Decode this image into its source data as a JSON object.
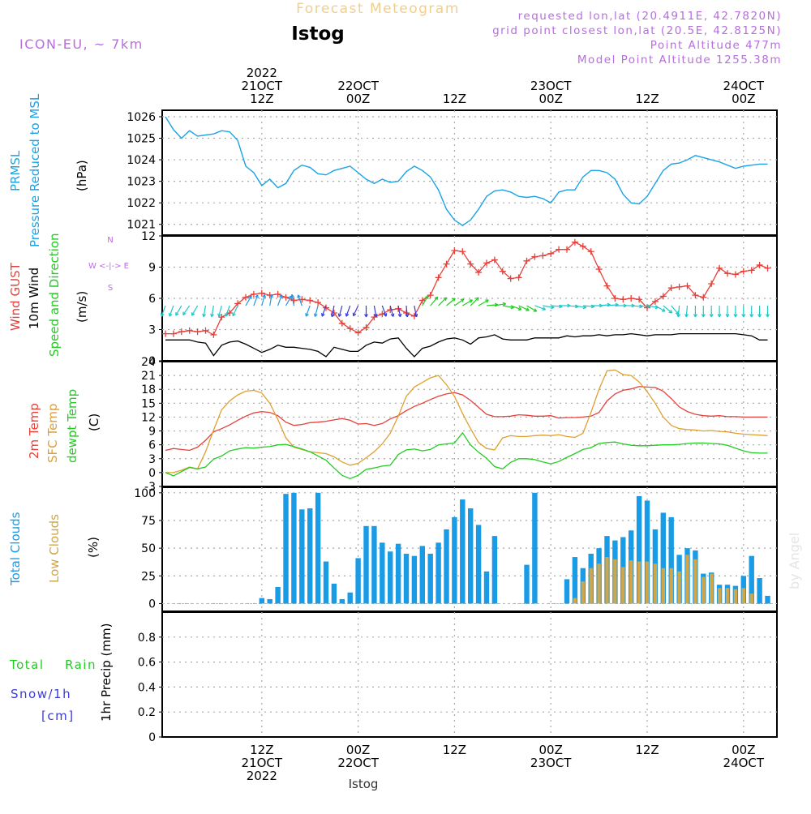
{
  "header": {
    "title": "Forecast Meteogram",
    "station": "Istog",
    "model": "ICON-EU, ~ 7km",
    "requested": "requested lon,lat (20.4911E, 42.7820N)",
    "grid_point": "grid point closest lon,lat (20.5E, 42.8125N)",
    "point_altitude": "Point Altitude 477m",
    "model_altitude": "Model Point Altitude 1255.38m",
    "footer_station": "Istog",
    "watermark": "by Angel"
  },
  "colors": {
    "pressure": "#19a3e6",
    "gust": "#e6403a",
    "wind": "#000000",
    "temp2m": "#e6403a",
    "sfc": "#e0a030",
    "dewpt": "#22cc22",
    "total_clouds": "#1a9be6",
    "low_clouds": "#cfa64a",
    "model_text": "#b86de0",
    "rain": "#22cc22",
    "snow": "#3b3bd9"
  },
  "time_axis": {
    "top_labels": [
      {
        "lines": [
          "2022",
          "21OCT",
          "12Z"
        ],
        "h": 12
      },
      {
        "lines": [
          "22OCT",
          "00Z"
        ],
        "h": 24
      },
      {
        "lines": [
          "12Z"
        ],
        "h": 36
      },
      {
        "lines": [
          "23OCT",
          "00Z"
        ],
        "h": 48
      },
      {
        "lines": [
          "12Z"
        ],
        "h": 60
      },
      {
        "lines": [
          "24OCT",
          "00Z"
        ],
        "h": 72
      }
    ],
    "bottom_labels": [
      {
        "lines": [
          "12Z",
          "21OCT",
          "2022"
        ],
        "h": 12
      },
      {
        "lines": [
          "00Z",
          "22OCT"
        ],
        "h": 24
      },
      {
        "lines": [
          "12Z"
        ],
        "h": 36
      },
      {
        "lines": [
          "00Z",
          "23OCT"
        ],
        "h": 48
      },
      {
        "lines": [
          "12Z"
        ],
        "h": 60
      },
      {
        "lines": [
          "00Z",
          "24OCT"
        ],
        "h": 72
      }
    ]
  },
  "panels": {
    "pressure": {
      "ylabel_1": "PRMSL",
      "ylabel_2": "Pressure Reduced to MSL",
      "unit": "(hPa)"
    },
    "wind": {
      "ylabel_gust": "Wind GUST",
      "ylabel_10m": "10m Wind",
      "ylabel_dir": "Speed and Direction",
      "unit": "(m/s)",
      "compass_h": "W <-|-> E",
      "compass_n": "N",
      "compass_s": "S"
    },
    "temp": {
      "ylabel_2m": "2m Temp",
      "ylabel_sfc": "SFC Temp",
      "ylabel_dew": "dewpt Temp",
      "unit": "(C)"
    },
    "clouds": {
      "ylabel_total": "Total Clouds",
      "ylabel_low": "Low Clouds",
      "unit": "(%)"
    },
    "precip": {
      "ylabel_total": "Total",
      "ylabel_rain": "Rain",
      "ylabel_snow": "Snow/1h",
      "ylabel_cm": "[cm]",
      "ylabel_1hr": "1hr Precip (mm)"
    }
  },
  "chart_data": [
    {
      "type": "line",
      "ylim": [
        1020.5,
        1026.3
      ],
      "yticks": [
        1021,
        1022,
        1023,
        1024,
        1025,
        1026
      ],
      "grid": true,
      "x_hours": [
        0,
        1,
        2,
        3,
        4,
        5,
        6,
        7,
        8,
        9,
        10,
        11,
        12,
        13,
        14,
        15,
        16,
        17,
        18,
        19,
        20,
        21,
        22,
        23,
        24,
        25,
        26,
        27,
        28,
        29,
        30,
        31,
        32,
        33,
        34,
        35,
        36,
        37,
        38,
        39,
        40,
        41,
        42,
        43,
        44,
        45,
        46,
        47,
        48,
        49,
        50,
        51,
        52,
        53,
        54,
        55,
        56,
        57,
        58,
        59,
        60,
        61,
        62,
        63,
        64,
        65,
        66,
        67,
        68,
        69,
        70,
        71,
        72,
        73,
        74,
        75
      ],
      "series": [
        {
          "key": "prmsl",
          "values": [
            1026.0,
            1025.4,
            1025.0,
            1025.35,
            1025.1,
            1025.15,
            1025.2,
            1025.35,
            1025.3,
            1024.9,
            1023.7,
            1023.4,
            1022.8,
            1023.1,
            1022.7,
            1022.9,
            1023.5,
            1023.75,
            1023.65,
            1023.35,
            1023.3,
            1023.5,
            1023.6,
            1023.7,
            1023.4,
            1023.1,
            1022.9,
            1023.1,
            1022.95,
            1023.0,
            1023.45,
            1023.7,
            1023.5,
            1023.2,
            1022.6,
            1021.7,
            1021.2,
            1020.95,
            1021.2,
            1021.7,
            1022.3,
            1022.55,
            1022.6,
            1022.5,
            1022.3,
            1022.25,
            1022.3,
            1022.2,
            1022.0,
            1022.5,
            1022.6,
            1022.6,
            1023.2,
            1023.5,
            1023.5,
            1023.4,
            1023.1,
            1022.4,
            1022.0,
            1021.95,
            1022.3,
            1022.9,
            1023.5,
            1023.8,
            1023.85,
            1024.0,
            1024.2,
            1024.1,
            1024.0,
            1023.9,
            1023.75,
            1023.6,
            1023.7,
            1023.75,
            1023.8,
            1023.8
          ]
        }
      ]
    },
    {
      "type": "line",
      "ylim": [
        0,
        12
      ],
      "yticks": [
        0,
        3,
        6,
        9,
        12
      ],
      "grid": true,
      "x_hours": [
        0,
        1,
        2,
        3,
        4,
        5,
        6,
        7,
        8,
        9,
        10,
        11,
        12,
        13,
        14,
        15,
        16,
        17,
        18,
        19,
        20,
        21,
        22,
        23,
        24,
        25,
        26,
        27,
        28,
        29,
        30,
        31,
        32,
        33,
        34,
        35,
        36,
        37,
        38,
        39,
        40,
        41,
        42,
        43,
        44,
        45,
        46,
        47,
        48,
        49,
        50,
        51,
        52,
        53,
        54,
        55,
        56,
        57,
        58,
        59,
        60,
        61,
        62,
        63,
        64,
        65,
        66,
        67,
        68,
        69,
        70,
        71,
        72,
        73,
        74,
        75
      ],
      "series": [
        {
          "key": "gust",
          "values": [
            2.6,
            2.6,
            2.8,
            2.9,
            2.8,
            2.9,
            2.5,
            4.2,
            4.6,
            5.5,
            6.1,
            6.4,
            6.5,
            6.3,
            6.4,
            6.1,
            5.8,
            5.9,
            5.8,
            5.6,
            5.1,
            4.6,
            3.6,
            3.1,
            2.7,
            3.2,
            4.2,
            4.5,
            4.9,
            5.0,
            4.6,
            4.3,
            5.8,
            6.3,
            8.0,
            9.3,
            10.6,
            10.5,
            9.3,
            8.5,
            9.4,
            9.7,
            8.6,
            7.9,
            8.0,
            9.6,
            10.0,
            10.1,
            10.3,
            10.7,
            10.7,
            11.4,
            11.0,
            10.5,
            8.8,
            7.2,
            6.0,
            5.9,
            6.0,
            5.9,
            5.1,
            5.7,
            6.2,
            7.0,
            7.1,
            7.2,
            6.3,
            6.1,
            7.4,
            8.9,
            8.4,
            8.3,
            8.6,
            8.7,
            9.2,
            8.9
          ]
        },
        {
          "key": "wind10m",
          "values": [
            2.0,
            2.0,
            2.0,
            2.0,
            1.8,
            1.7,
            0.5,
            1.5,
            1.8,
            1.9,
            1.6,
            1.2,
            0.8,
            1.1,
            1.5,
            1.3,
            1.3,
            1.2,
            1.1,
            0.9,
            0.4,
            1.3,
            1.1,
            0.9,
            0.9,
            1.5,
            1.8,
            1.7,
            2.1,
            2.2,
            1.2,
            0.4,
            1.2,
            1.4,
            1.8,
            2.1,
            2.2,
            2.0,
            1.6,
            2.2,
            2.3,
            2.5,
            2.1,
            2.0,
            2.0,
            2.0,
            2.2,
            2.2,
            2.2,
            2.2,
            2.4,
            2.3,
            2.4,
            2.4,
            2.5,
            2.4,
            2.5,
            2.5,
            2.6,
            2.5,
            2.4,
            2.5,
            2.5,
            2.5,
            2.6,
            2.6,
            2.6,
            2.6,
            2.6,
            2.6,
            2.6,
            2.6,
            2.5,
            2.4,
            2.0,
            2.0
          ]
        }
      ]
    },
    {
      "type": "line",
      "ylim": [
        -3,
        24
      ],
      "yticks": [
        -3,
        0,
        3,
        6,
        9,
        12,
        15,
        18,
        21,
        24
      ],
      "grid": true,
      "x_hours": [
        0,
        1,
        2,
        3,
        4,
        5,
        6,
        7,
        8,
        9,
        10,
        11,
        12,
        13,
        14,
        15,
        16,
        17,
        18,
        19,
        20,
        21,
        22,
        23,
        24,
        25,
        26,
        27,
        28,
        29,
        30,
        31,
        32,
        33,
        34,
        35,
        36,
        37,
        38,
        39,
        40,
        41,
        42,
        43,
        44,
        45,
        46,
        47,
        48,
        49,
        50,
        51,
        52,
        53,
        54,
        55,
        56,
        57,
        58,
        59,
        60,
        61,
        62,
        63,
        64,
        65,
        66,
        67,
        68,
        69,
        70,
        71,
        72,
        73,
        74,
        75
      ],
      "series": [
        {
          "key": "t2m",
          "values": [
            4.8,
            5.2,
            5.0,
            4.8,
            5.5,
            7.0,
            8.8,
            9.5,
            10.3,
            11.3,
            12.2,
            12.9,
            13.2,
            13.0,
            12.3,
            10.9,
            10.2,
            10.4,
            10.8,
            10.9,
            11.1,
            11.4,
            11.7,
            11.3,
            10.5,
            10.6,
            10.2,
            10.6,
            11.6,
            12.3,
            13.4,
            14.3,
            15.0,
            15.8,
            16.5,
            17.0,
            17.3,
            16.8,
            15.6,
            14.1,
            12.6,
            12.1,
            12.1,
            12.2,
            12.5,
            12.4,
            12.2,
            12.2,
            12.3,
            11.8,
            11.9,
            11.9,
            12.0,
            12.2,
            13.0,
            15.5,
            17.0,
            17.8,
            18.1,
            18.6,
            18.5,
            18.4,
            17.6,
            16.0,
            14.2,
            13.2,
            12.6,
            12.3,
            12.2,
            12.3,
            12.1,
            12.1,
            12.0,
            12.0,
            12.0,
            12.0
          ]
        },
        {
          "key": "sfc",
          "values": [
            0.0,
            0.0,
            0.5,
            1.2,
            0.8,
            4.5,
            9.2,
            13.6,
            15.5,
            16.8,
            17.6,
            17.8,
            17.2,
            15.0,
            11.5,
            7.5,
            5.5,
            5.0,
            4.5,
            4.3,
            4.1,
            3.4,
            2.3,
            1.6,
            2.0,
            3.2,
            4.5,
            6.2,
            8.5,
            12.2,
            16.5,
            18.5,
            19.5,
            20.5,
            21.0,
            19.0,
            16.5,
            12.8,
            9.5,
            6.5,
            5.2,
            4.9,
            7.5,
            8.0,
            7.8,
            7.8,
            8.0,
            8.1,
            8.0,
            8.2,
            7.8,
            7.6,
            8.5,
            13.0,
            18.0,
            22.0,
            22.2,
            21.2,
            21.0,
            19.6,
            17.5,
            15.0,
            12.0,
            10.2,
            9.5,
            9.3,
            9.2,
            9.0,
            9.1,
            8.9,
            8.8,
            8.5,
            8.3,
            8.2,
            8.1,
            8.0
          ]
        },
        {
          "key": "dewpt",
          "values": [
            0.0,
            -0.7,
            0.2,
            1.1,
            0.8,
            1.2,
            2.9,
            3.6,
            4.7,
            5.1,
            5.4,
            5.3,
            5.5,
            5.6,
            6.0,
            6.1,
            5.6,
            5.1,
            4.5,
            3.6,
            2.7,
            1.0,
            -0.6,
            -1.3,
            -0.6,
            0.7,
            1.0,
            1.4,
            1.6,
            3.9,
            4.9,
            5.1,
            4.7,
            5.0,
            6.0,
            6.2,
            6.4,
            8.6,
            6.0,
            4.4,
            3.1,
            1.3,
            0.8,
            2.2,
            3.0,
            3.0,
            2.8,
            2.3,
            1.9,
            2.4,
            3.3,
            4.1,
            5.0,
            5.4,
            6.3,
            6.5,
            6.6,
            6.2,
            5.9,
            5.8,
            5.8,
            5.9,
            6.0,
            6.0,
            6.1,
            6.3,
            6.4,
            6.4,
            6.3,
            6.2,
            5.9,
            5.3,
            4.7,
            4.3,
            4.2,
            4.2
          ]
        }
      ]
    },
    {
      "type": "bar",
      "ylim": [
        -7,
        105
      ],
      "yticks": [
        0,
        25,
        50,
        75,
        100
      ],
      "grid": true,
      "x_hours": [
        0,
        1,
        2,
        3,
        4,
        5,
        6,
        7,
        8,
        9,
        10,
        11,
        12,
        13,
        14,
        15,
        16,
        17,
        18,
        19,
        20,
        21,
        22,
        23,
        24,
        25,
        26,
        27,
        28,
        29,
        30,
        31,
        32,
        33,
        34,
        35,
        36,
        37,
        38,
        39,
        40,
        41,
        42,
        43,
        44,
        45,
        46,
        47,
        48,
        49,
        50,
        51,
        52,
        53,
        54,
        55,
        56,
        57,
        58,
        59,
        60,
        61,
        62,
        63,
        64,
        65,
        66,
        67,
        68,
        69,
        70,
        71,
        72,
        73,
        74,
        75
      ],
      "series": [
        {
          "key": "total",
          "values": [
            0,
            0,
            0,
            0,
            0,
            0,
            0,
            0,
            0,
            0,
            0,
            0,
            5,
            4,
            15,
            99,
            100,
            85,
            86,
            100,
            38,
            18,
            4,
            10,
            41,
            70,
            70,
            55,
            47,
            54,
            45,
            43,
            52,
            45,
            55,
            67,
            78,
            94,
            86,
            71,
            29,
            61,
            0,
            0,
            0,
            35,
            100,
            0,
            0,
            0,
            22,
            42,
            32,
            45,
            50,
            61,
            57,
            60,
            66,
            97,
            93,
            67,
            82,
            78,
            44,
            50,
            48,
            27,
            28,
            17,
            17,
            16,
            25,
            43,
            23,
            7
          ]
        },
        {
          "key": "low",
          "values": [
            0,
            0,
            0,
            0,
            0,
            0,
            0,
            0,
            0,
            0,
            0,
            0,
            0,
            0,
            0,
            0,
            0,
            0,
            0,
            0,
            0,
            0,
            0,
            0,
            0,
            0,
            0,
            0,
            0,
            0,
            0,
            0,
            0,
            0,
            0,
            0,
            0,
            0,
            0,
            0,
            0,
            0,
            0,
            0,
            0,
            0,
            0,
            0,
            0,
            0,
            0,
            5,
            20,
            32,
            36,
            42,
            40,
            33,
            39,
            38,
            38,
            36,
            32,
            32,
            29,
            44,
            40,
            24,
            27,
            14,
            14,
            13,
            14,
            9,
            0,
            0
          ]
        }
      ]
    },
    {
      "type": "bar",
      "ylim": [
        0,
        1.0
      ],
      "yticks": [
        0,
        0.2,
        0.4,
        0.6,
        0.8
      ],
      "grid": true,
      "series": [
        {
          "key": "precip",
          "values": []
        }
      ]
    }
  ]
}
